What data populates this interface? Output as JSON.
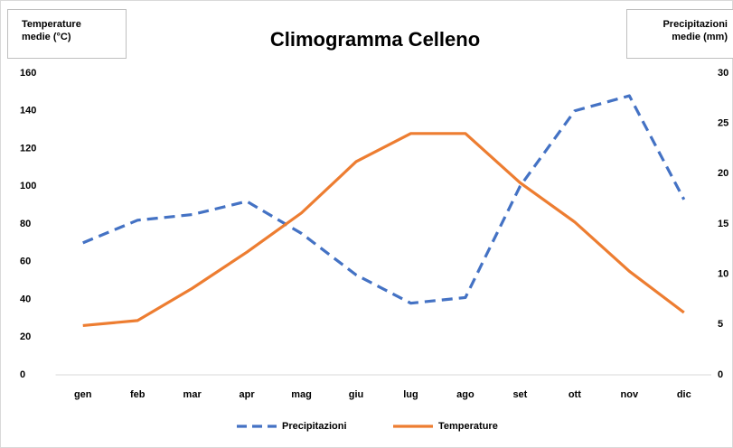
{
  "chart_data": {
    "type": "line",
    "title": "Climogramma Celleno",
    "y_axis_title": "Temperature medie (°C)",
    "y2_axis_title": "Precipitazioni medie (mm)",
    "categories": [
      "gen",
      "feb",
      "mar",
      "apr",
      "mag",
      "giu",
      "lug",
      "ago",
      "set",
      "ott",
      "nov",
      "dic"
    ],
    "series": [
      {
        "name": "Precipitazioni",
        "color": "#4472c4",
        "dashed": true,
        "axis": "y",
        "values": [
          70,
          82,
          85,
          92,
          75,
          53,
          38,
          41,
          100,
          140,
          148,
          93
        ]
      },
      {
        "name": "Temperature",
        "color": "#ed7d31",
        "dashed": false,
        "axis": "y2",
        "values": [
          4.9,
          5.4,
          8.6,
          12.2,
          16.1,
          21.2,
          24,
          24,
          19.1,
          15.2,
          10.3,
          6.2
        ]
      }
    ],
    "ylim": [
      0,
      160
    ],
    "yticks": [
      0,
      20,
      40,
      60,
      80,
      100,
      120,
      140,
      160
    ],
    "y2lim": [
      0,
      30
    ],
    "y2ticks": [
      0,
      5,
      10,
      15,
      20,
      25,
      30
    ],
    "grid": false,
    "legend": "bottom"
  }
}
